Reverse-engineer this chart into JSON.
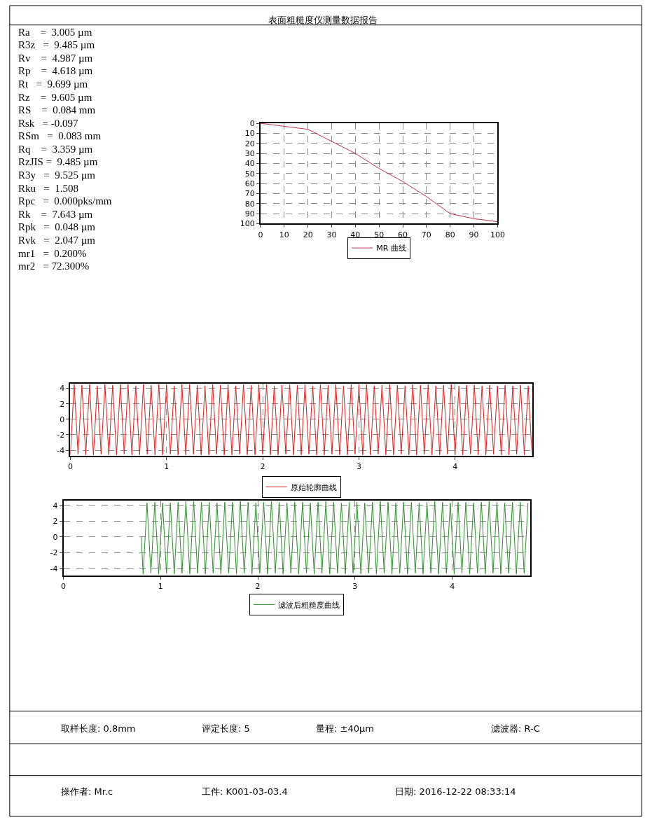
{
  "chart_data": [
    {
      "type": "other",
      "title": "表面粗糙度仪测量数据报告",
      "annotations": [
        "Ra    =  3.005 µm",
        "R3z   =  9.485 µm",
        "Rv    =  4.987 µm",
        "Rp    =  4.618 µm",
        "Rt   =  9.699 µm",
        "Rz    =  9.605 µm",
        "RS    =  0.084 mm",
        "Rsk   = -0.097",
        "RSm   =  0.083 mm",
        "Rq    =  3.359 µm",
        "RzJIS =  9.485 µm",
        "R3y   =  9.525 µm",
        "Rku   =  1.508",
        "Rpc   =  0.000pks/mm",
        "Rk    =  7.643 µm",
        "Rpk   =  0.048 µm",
        "Rvk   =  2.047 µm",
        "mr1   =  0.200%",
        "mr2   = 72.300%"
      ]
    },
    {
      "type": "line",
      "x": [
        0,
        10,
        20,
        30,
        40,
        50,
        60,
        70,
        80,
        90,
        100
      ],
      "series": [
        {
          "name": "MR 曲线",
          "color": "#c0304a",
          "values": [
            0,
            3,
            6,
            18,
            30,
            45,
            58,
            73,
            90,
            95,
            98
          ]
        }
      ],
      "xlim": [
        0,
        100
      ],
      "xticks": [
        0,
        10,
        20,
        30,
        40,
        50,
        60,
        70,
        80,
        90,
        100
      ],
      "ylim": [
        100,
        0
      ],
      "yticks": [
        0,
        10,
        20,
        30,
        40,
        50,
        60,
        70,
        80,
        90,
        100
      ],
      "grid": true,
      "legend": "bottom",
      "marker": "none",
      "line_style": "solid"
    },
    {
      "type": "line",
      "x": [
        0,
        0.04,
        0.08,
        0.12,
        0.16,
        0.2,
        0.24,
        0.28,
        0.32,
        0.36,
        0.4,
        0.44,
        0.48,
        0.52,
        0.56,
        0.6,
        0.64,
        0.68,
        0.72,
        0.76,
        0.8,
        0.84,
        0.88,
        0.92,
        0.96,
        1,
        1.04,
        1.08,
        1.12,
        1.16,
        1.2,
        1.24,
        1.28,
        1.32,
        1.36,
        1.4,
        1.44,
        1.48,
        1.52,
        1.56,
        1.6,
        1.64,
        1.68,
        1.72,
        1.76,
        1.8,
        1.84,
        1.88,
        1.92,
        1.96,
        2,
        2.04,
        2.08,
        2.12,
        2.16,
        2.2,
        2.24,
        2.28,
        2.32,
        2.36,
        2.4,
        2.44,
        2.48,
        2.52,
        2.56,
        2.6,
        2.64,
        2.68,
        2.72,
        2.76,
        2.8,
        2.84,
        2.88,
        2.92,
        2.96,
        3,
        3.04,
        3.08,
        3.12,
        3.16,
        3.2,
        3.24,
        3.28,
        3.32,
        3.36,
        3.4,
        3.44,
        3.48,
        3.52,
        3.56,
        3.6,
        3.64,
        3.68,
        3.72,
        3.76,
        3.8,
        3.84,
        3.88,
        3.92,
        3.96,
        4,
        4.04,
        4.08,
        4.12,
        4.16,
        4.2,
        4.24,
        4.28,
        4.32,
        4.36,
        4.4,
        4.44,
        4.48,
        4.52,
        4.56,
        4.6,
        4.64,
        4.68,
        4.72,
        4.76,
        4.8
      ],
      "series": [
        {
          "name": "原始轮廓曲线",
          "color": "#d42020",
          "values": [
            -4.6,
            4.5,
            -4.5,
            4.4,
            -4.6,
            4.5,
            -4.6,
            4.3,
            -4.5,
            4.5,
            -4.6,
            4.4,
            -4.6,
            4.5,
            -4.5,
            4.5,
            -4.6,
            4.3,
            -4.6,
            4.5,
            -4.5,
            4.4,
            -4.6,
            4.5,
            -4.6,
            4.4,
            -4.5,
            4.3,
            -4.6,
            4.5,
            -4.6,
            4.5,
            -4.5,
            4.4,
            -4.6,
            4.3,
            -4.6,
            4.5,
            -4.5,
            4.4,
            -4.6,
            4.5,
            -4.6,
            4.3,
            -4.5,
            4.5,
            -4.6,
            4.4,
            -4.6,
            4.5,
            -4.5,
            4.5,
            -4.6,
            4.3,
            -4.6,
            4.4,
            -4.5,
            4.5,
            -4.6,
            4.4,
            -4.6,
            4.5,
            -4.5,
            4.3,
            -4.6,
            4.5,
            -4.6,
            4.4,
            -4.5,
            4.5,
            -4.6,
            4.3,
            -4.6,
            4.5,
            -4.5,
            4.4,
            -4.6,
            4.5,
            -4.6,
            4.3,
            -4.5,
            4.4,
            -4.6,
            4.5,
            -4.6,
            4.4,
            -4.5,
            4.3,
            -4.6,
            4.5,
            -4.6,
            4.4,
            -4.5,
            4.5,
            -4.6,
            4.3,
            -4.6,
            4.4,
            -4.5,
            4.5,
            -4.6,
            4.3,
            -4.6,
            4.4,
            -4.5,
            4.4,
            -4.6,
            4.3,
            -4.6,
            4.4,
            -4.5,
            4.3,
            -4.6,
            4.4,
            -4.6,
            4.3,
            -4.5,
            4.4,
            -4.6,
            4.3,
            -4.6
          ]
        }
      ],
      "xlim": [
        0,
        4.8
      ],
      "xticks": [
        0,
        1,
        2,
        3,
        4
      ],
      "ylim": [
        -4.7,
        4.6
      ],
      "yticks": [
        -4,
        -2,
        0,
        2,
        4
      ],
      "grid": true,
      "legend": "bottom",
      "marker": "none",
      "line_style": "solid"
    },
    {
      "type": "line",
      "x": [
        0.8,
        0.82,
        0.86,
        0.9,
        0.94,
        0.98,
        1.02,
        1.06,
        1.1,
        1.14,
        1.18,
        1.22,
        1.26,
        1.3,
        1.34,
        1.38,
        1.42,
        1.46,
        1.5,
        1.54,
        1.58,
        1.62,
        1.66,
        1.7,
        1.74,
        1.78,
        1.82,
        1.86,
        1.9,
        1.94,
        1.98,
        2.02,
        2.06,
        2.1,
        2.14,
        2.18,
        2.22,
        2.26,
        2.3,
        2.34,
        2.38,
        2.42,
        2.46,
        2.5,
        2.54,
        2.58,
        2.62,
        2.66,
        2.7,
        2.74,
        2.78,
        2.82,
        2.86,
        2.9,
        2.94,
        2.98,
        3.02,
        3.06,
        3.1,
        3.14,
        3.18,
        3.22,
        3.26,
        3.3,
        3.34,
        3.38,
        3.42,
        3.46,
        3.5,
        3.54,
        3.58,
        3.62,
        3.66,
        3.7,
        3.74,
        3.78,
        3.82,
        3.86,
        3.9,
        3.94,
        3.98,
        4.02,
        4.06,
        4.1,
        4.14,
        4.18,
        4.22,
        4.26,
        4.3,
        4.34,
        4.38,
        4.42,
        4.46,
        4.5,
        4.54,
        4.58,
        4.62,
        4.66,
        4.7,
        4.74,
        4.78
      ],
      "series": [
        {
          "name": "滤波后粗糙度曲线",
          "color": "#2e8b2e",
          "values": [
            0,
            -4.7,
            4.3,
            -4.6,
            4.4,
            -4.7,
            4.3,
            -4.6,
            4.3,
            -4.7,
            4.4,
            -4.6,
            4.5,
            -4.7,
            4.5,
            -4.6,
            4.4,
            -4.7,
            4.4,
            -4.6,
            4.3,
            -4.7,
            4.4,
            -4.6,
            4.4,
            -4.7,
            4.5,
            -4.6,
            4.4,
            -4.7,
            4.3,
            -4.6,
            4.4,
            -4.7,
            4.5,
            -4.6,
            4.4,
            -4.7,
            4.3,
            -4.6,
            4.4,
            -4.7,
            4.4,
            -4.6,
            4.3,
            -4.7,
            4.4,
            -4.6,
            4.5,
            -4.7,
            4.4,
            -4.6,
            4.3,
            -4.7,
            4.4,
            -4.6,
            4.4,
            -4.7,
            4.3,
            -4.6,
            4.4,
            -4.7,
            4.5,
            -4.6,
            4.4,
            -4.7,
            4.3,
            -4.6,
            4.4,
            -4.7,
            4.4,
            -4.6,
            4.3,
            -4.7,
            4.4,
            -4.6,
            4.5,
            -4.7,
            4.4,
            -4.6,
            4.3,
            -4.7,
            4.4,
            -4.6,
            4.4,
            -4.7,
            4.3,
            -4.6,
            4.4,
            -4.7,
            4.5,
            -4.6,
            4.4,
            -4.7,
            4.3,
            -4.6,
            4.4,
            -4.7,
            4.4,
            -4.6,
            4.3
          ]
        }
      ],
      "xlim": [
        0,
        4.8
      ],
      "xticks": [
        0,
        1,
        2,
        3,
        4
      ],
      "ylim": [
        -4.9,
        4.6
      ],
      "yticks": [
        -4,
        -2,
        0,
        2,
        4
      ],
      "grid": true,
      "legend": "bottom",
      "marker": "none",
      "line_style": "solid"
    },
    {
      "type": "other",
      "annotations": [
        "取样长度: 0.8mm",
        "评定长度: 5",
        "量程: ±40µm",
        "滤波器: R-C",
        "操作者: Mr.c",
        "工件: K001-03-03.4",
        "日期: 2016-12-22 08:33:14"
      ]
    }
  ]
}
